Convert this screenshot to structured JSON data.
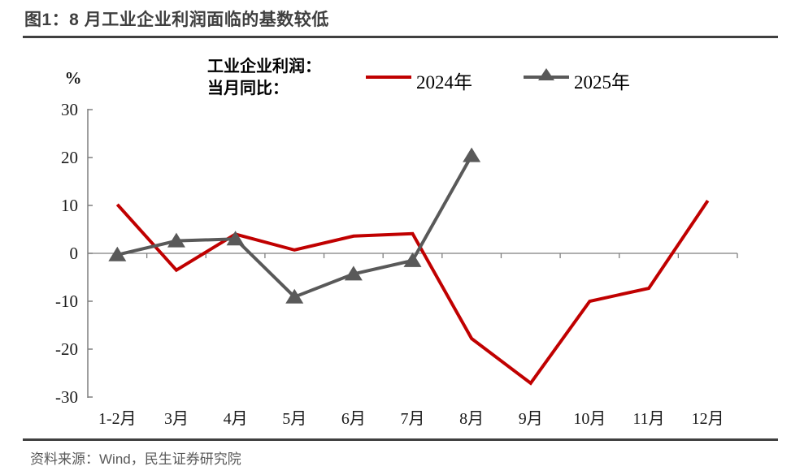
{
  "page": {
    "title": "图1：8 月工业企业利润面临的基数较低",
    "source": "资料来源：Wind，民生证券研究院"
  },
  "legend": {
    "caption_line1": "工业企业利润：",
    "caption_line2": "当月同比："
  },
  "colors": {
    "series_2024": "#C00000",
    "series_2025": "#595959",
    "axis": "#7F7F7F",
    "rule": "#404040",
    "title_text": "#3F3F3F",
    "source_text": "#595959"
  },
  "chart_data": {
    "type": "line",
    "title": "工业企业利润：当月同比",
    "ylabel": "%",
    "xlabel": "",
    "ylim": [
      -30,
      30
    ],
    "yticks": [
      30,
      20,
      10,
      0,
      -10,
      -20,
      -30
    ],
    "grid": false,
    "legend_position": "top",
    "categories": [
      "1-2月",
      "3月",
      "4月",
      "5月",
      "6月",
      "7月",
      "8月",
      "9月",
      "10月",
      "11月",
      "12月"
    ],
    "series": [
      {
        "name": "2024年",
        "color": "#C00000",
        "marker": "none",
        "values": [
          10.2,
          -3.5,
          4.0,
          0.7,
          3.6,
          4.1,
          -17.8,
          -27.1,
          -10.0,
          -7.3,
          11.0
        ]
      },
      {
        "name": "2025年",
        "color": "#595959",
        "marker": "triangle",
        "values": [
          -0.3,
          2.6,
          3.0,
          -9.1,
          -4.3,
          -1.5,
          20.4,
          null,
          null,
          null,
          null
        ]
      }
    ]
  }
}
